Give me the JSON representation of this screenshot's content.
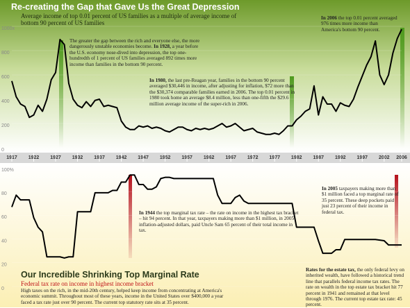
{
  "chart_data": [
    {
      "type": "line",
      "title": "Re-creating the Gap that Gave Us the Great Depression",
      "subtitle": "Average income of top 0.01 percent of US families as a multiple of average income of bottom 90 percent of US families",
      "x": [
        1917,
        1918,
        1919,
        1920,
        1921,
        1922,
        1923,
        1924,
        1925,
        1926,
        1927,
        1928,
        1929,
        1930,
        1931,
        1932,
        1933,
        1934,
        1935,
        1936,
        1937,
        1938,
        1939,
        1940,
        1941,
        1942,
        1943,
        1944,
        1945,
        1946,
        1947,
        1948,
        1949,
        1950,
        1951,
        1952,
        1953,
        1954,
        1955,
        1956,
        1957,
        1958,
        1959,
        1960,
        1961,
        1962,
        1963,
        1964,
        1965,
        1966,
        1967,
        1968,
        1969,
        1970,
        1971,
        1972,
        1973,
        1974,
        1975,
        1976,
        1977,
        1978,
        1979,
        1980,
        1981,
        1982,
        1983,
        1984,
        1985,
        1986,
        1987,
        1988,
        1989,
        1990,
        1991,
        1992,
        1993,
        1994,
        1995,
        1996,
        1997,
        1998,
        1999,
        2000,
        2001,
        2002,
        2003,
        2004,
        2005,
        2006
      ],
      "values": [
        550,
        420,
        360,
        340,
        250,
        270,
        350,
        300,
        400,
        560,
        620,
        892,
        850,
        530,
        400,
        350,
        330,
        380,
        340,
        390,
        400,
        340,
        350,
        340,
        330,
        220,
        170,
        150,
        150,
        180,
        170,
        180,
        160,
        170,
        160,
        140,
        130,
        150,
        170,
        170,
        150,
        140,
        160,
        150,
        160,
        150,
        160,
        180,
        200,
        170,
        180,
        200,
        170,
        140,
        150,
        160,
        130,
        120,
        110,
        110,
        120,
        110,
        140,
        180,
        180,
        230,
        260,
        300,
        320,
        510,
        270,
        420,
        360,
        360,
        300,
        370,
        350,
        340,
        400,
        500,
        590,
        680,
        750,
        880,
        600,
        520,
        600,
        780,
        900,
        976
      ],
      "color": "#000000",
      "xlim": [
        1917,
        2006
      ],
      "xticks": [
        1917,
        1922,
        1927,
        1932,
        1937,
        1942,
        1947,
        1952,
        1957,
        1962,
        1967,
        1972,
        1977,
        1982,
        1987,
        1992,
        1997,
        2002,
        2006
      ],
      "ylim": [
        0,
        1000
      ],
      "yticks": [
        0,
        200,
        400,
        600,
        800,
        {
          "value": 1000,
          "label": "1000x"
        }
      ],
      "annotations": [
        [
          {
            "text": "The greater the gap between the rich and everyone else, the more dangerously unstable economies become. "
          },
          {
            "text": "In 1928,",
            "bold": true
          },
          {
            "text": " a year before the U.S. economy nose-dived into depression, the top one-hundredth of 1 percent of US families averaged 892 times more income than families in the bottom 90 percent."
          }
        ],
        [
          {
            "text": "In 1980,",
            "bold": true
          },
          {
            "text": " the last pre-Reagan year, families in the bottom 90 percent averaged $30,446 in income, after adjusting for inflation, $72 more than the $30,374 comparable families earned in 2006. The top 0.01 percent in 1980 took home an average $8.4 million, less than one-fifth the $29.6 million average income of the super-rich in 2006."
          }
        ],
        [
          {
            "text": "In 2006",
            "bold": true
          },
          {
            "text": " the top 0.01 percent averaged 976 times more income than America's bottom 90 percent."
          }
        ]
      ]
    },
    {
      "type": "line",
      "title": "Our Incredible Shrinking Top Marginal Rate",
      "subtitle": "Federal tax rate on income in highest income bracket",
      "body": "High taxes on the rich, in the mid-20th century, helped keep income from concentrating at America's economic summit. Throughout most of these years, income in the United States over $400,000 a year faced a tax rate just over 90 percent. The current top statutory rate sits at 35 percent.",
      "x": [
        1917,
        1918,
        1919,
        1920,
        1921,
        1922,
        1923,
        1924,
        1925,
        1926,
        1927,
        1928,
        1929,
        1930,
        1931,
        1932,
        1933,
        1934,
        1935,
        1936,
        1937,
        1938,
        1939,
        1940,
        1941,
        1942,
        1943,
        1944,
        1945,
        1946,
        1947,
        1948,
        1949,
        1950,
        1951,
        1952,
        1953,
        1954,
        1955,
        1956,
        1957,
        1958,
        1959,
        1960,
        1961,
        1962,
        1963,
        1964,
        1965,
        1966,
        1967,
        1968,
        1969,
        1970,
        1971,
        1972,
        1973,
        1974,
        1975,
        1976,
        1977,
        1978,
        1979,
        1980,
        1981,
        1982,
        1983,
        1984,
        1985,
        1986,
        1987,
        1988,
        1989,
        1990,
        1991,
        1992,
        1993,
        1994,
        1995,
        1996,
        1997,
        1998,
        1999,
        2000,
        2001,
        2002,
        2003,
        2004,
        2005,
        2006
      ],
      "values": [
        67,
        77,
        73,
        73,
        73,
        58,
        50,
        46,
        25,
        25,
        25,
        25,
        24,
        25,
        25,
        63,
        63,
        63,
        63,
        79,
        79,
        79,
        79,
        81,
        81,
        88,
        88,
        94,
        94,
        86,
        86,
        82,
        82,
        84,
        91,
        92,
        92,
        91,
        91,
        91,
        91,
        91,
        91,
        91,
        91,
        91,
        91,
        77,
        70,
        70,
        70,
        75,
        77,
        72,
        70,
        70,
        70,
        70,
        70,
        70,
        70,
        70,
        70,
        70,
        70,
        50,
        50,
        50,
        50,
        50,
        38.5,
        28,
        28,
        28,
        31,
        31,
        39.6,
        39.6,
        39.6,
        39.6,
        39.6,
        39.6,
        39.6,
        39.6,
        39.1,
        38.6,
        35,
        35,
        35,
        35
      ],
      "color": "#000000",
      "xlim": [
        1917,
        2006
      ],
      "ylim": [
        0,
        100
      ],
      "yticks": [
        0,
        20,
        40,
        60,
        80,
        {
          "value": 100,
          "label": "100%"
        }
      ],
      "annotations": [
        [
          {
            "text": "In 1944",
            "bold": true
          },
          {
            "text": " the top marginal tax rate – the rate on income in the highest tax bracket – hit 94 percent. In that year, taxpayers making more than $1 million, in 2005 inflation-adjusted dollars, paid Uncle Sam 65 percent of their total income in tax."
          }
        ],
        [
          {
            "text": "In 2005",
            "bold": true
          },
          {
            "text": " taxpayers making more than $1 million faced a top marginal rate of 35 percent. These deep pockets paid just 23 percent of their income in federal tax."
          }
        ],
        [
          {
            "text": "Rates for the estate tax,",
            "bold": true
          },
          {
            "text": " the only federal levy on inherited wealth, have followed a historical trend line that parallels federal income tax rates. The rate on wealth in the top estate tax bracket hit 77 percent in 1941 and remained at that level through 1976. The current top estate tax rate: 45 percent."
          }
        ]
      ]
    }
  ]
}
